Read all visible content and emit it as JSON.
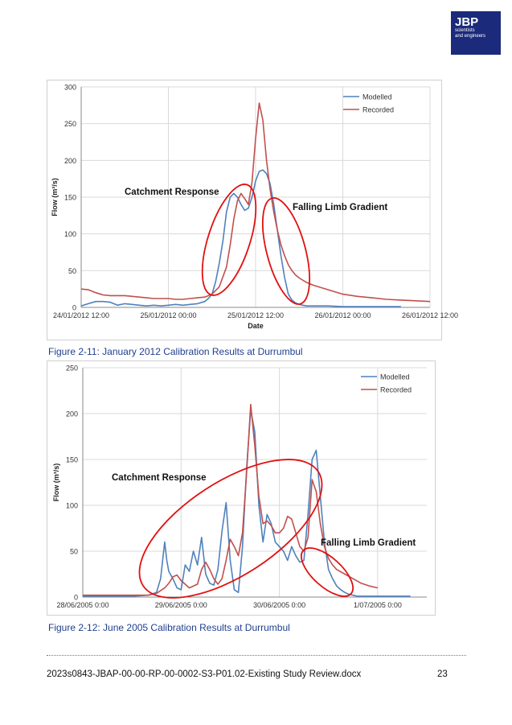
{
  "logo": {
    "brand": "JBP",
    "line1": "scientists",
    "line2": "and engineers",
    "color": "#1b2a7a"
  },
  "figure1": {
    "caption": "Figure 2-11: January 2012 Calibration Results at Durrumbul",
    "annotations": [
      "Catchment Response",
      "Falling Limb Gradient"
    ]
  },
  "figure2": {
    "caption": "Figure 2-12: June 2005 Calibration Results at Durrumbul",
    "annotations": [
      "Catchment Response",
      "Falling Limb Gradient"
    ]
  },
  "footer": {
    "doc": "2023s0843-JBAP-00-00-RP-00-0002-S3-P01.02-Existing Study Review.docx",
    "page": "23"
  },
  "chart_data": [
    {
      "type": "line",
      "title": "",
      "xlabel": "Date",
      "ylabel": "Flow (m³/s)",
      "ylim": [
        0,
        300
      ],
      "xlim": [
        0,
        48
      ],
      "x_unit": "hours from 24/01/2012 12:00",
      "x_ticks": [
        0,
        12,
        24,
        36,
        48
      ],
      "x_tick_labels": [
        "24/01/2012 12:00",
        "25/01/2012 00:00",
        "25/01/2012 12:00",
        "26/01/2012 00:00",
        "26/01/2012 12:00"
      ],
      "y_ticks": [
        0,
        50,
        100,
        150,
        200,
        250,
        300
      ],
      "grid": true,
      "legend": "top-right",
      "series": [
        {
          "name": "Modelled",
          "color": "#4f81bd",
          "x": [
            0,
            1,
            2,
            3,
            4,
            5,
            6,
            7,
            8,
            9,
            10,
            11,
            12,
            13,
            14,
            15,
            16,
            17,
            17.5,
            18,
            18.5,
            19,
            19.5,
            20,
            20.5,
            21,
            21.5,
            22,
            22.5,
            23,
            23.5,
            24,
            24.5,
            25,
            25.5,
            26,
            26.5,
            27,
            27.5,
            28,
            28.5,
            29,
            29.5,
            30,
            30.5,
            31,
            32,
            33,
            34,
            36,
            38,
            40,
            42,
            44
          ],
          "y": [
            2,
            5,
            8,
            8,
            7,
            3,
            5,
            4,
            3,
            2,
            3,
            2,
            3,
            4,
            3,
            4,
            5,
            8,
            12,
            18,
            35,
            60,
            90,
            130,
            150,
            155,
            150,
            140,
            132,
            135,
            150,
            172,
            185,
            187,
            182,
            168,
            140,
            105,
            70,
            40,
            18,
            10,
            6,
            4,
            3,
            2,
            2,
            2,
            2,
            1,
            1,
            1,
            1,
            1
          ]
        },
        {
          "name": "Recorded",
          "color": "#c0504d",
          "x": [
            0,
            1,
            2,
            3,
            4,
            5,
            6,
            7,
            8,
            9,
            10,
            11,
            12,
            13,
            14,
            15,
            16,
            17,
            18,
            19,
            20,
            20.5,
            21,
            21.5,
            22,
            22.5,
            23,
            23.5,
            24,
            24.5,
            25,
            25.5,
            26,
            26.5,
            27,
            27.5,
            28,
            28.5,
            29,
            29.5,
            30,
            31,
            32,
            34,
            36,
            38,
            40,
            42,
            44,
            46,
            48
          ],
          "y": [
            25,
            24,
            20,
            17,
            16,
            16,
            16,
            15,
            14,
            13,
            12,
            12,
            12,
            11,
            11,
            12,
            13,
            14,
            18,
            28,
            55,
            85,
            120,
            145,
            155,
            148,
            140,
            170,
            230,
            278,
            255,
            200,
            160,
            130,
            105,
            85,
            70,
            58,
            50,
            44,
            40,
            34,
            30,
            24,
            18,
            15,
            13,
            11,
            10,
            9,
            8
          ]
        }
      ]
    },
    {
      "type": "line",
      "title": "",
      "xlabel": "",
      "ylabel": "Flow (m³/s)",
      "ylim": [
        0,
        250
      ],
      "xlim": [
        0,
        84
      ],
      "x_unit": "hours from 28/06/2005 00:00",
      "x_ticks": [
        0,
        24,
        48,
        72
      ],
      "x_tick_labels": [
        "28/06/2005 0:00",
        "29/06/2005 0:00",
        "30/06/2005 0:00",
        "1/07/2005 0:00"
      ],
      "y_ticks": [
        0,
        50,
        100,
        150,
        200,
        250
      ],
      "grid": true,
      "legend": "top-right",
      "series": [
        {
          "name": "Modelled",
          "color": "#4f81bd",
          "x": [
            0,
            4,
            8,
            12,
            16,
            18,
            19,
            20,
            20.5,
            21,
            22,
            23,
            24,
            25,
            26,
            27,
            28,
            29,
            30,
            31,
            32,
            33,
            34,
            35,
            36,
            37,
            38,
            39,
            40,
            41,
            42,
            43,
            44,
            45,
            46,
            47,
            48,
            49,
            50,
            51,
            52,
            53,
            54,
            55,
            56,
            57,
            58,
            59,
            60,
            61,
            62,
            63,
            64,
            65,
            66,
            67,
            68,
            70,
            72,
            75,
            78,
            80
          ],
          "y": [
            1,
            1,
            1,
            1,
            2,
            5,
            20,
            60,
            40,
            28,
            20,
            10,
            8,
            35,
            28,
            50,
            35,
            65,
            25,
            15,
            13,
            30,
            72,
            103,
            40,
            8,
            5,
            55,
            140,
            204,
            180,
            100,
            60,
            90,
            80,
            60,
            55,
            50,
            40,
            55,
            45,
            38,
            40,
            90,
            150,
            160,
            110,
            60,
            30,
            20,
            12,
            8,
            5,
            3,
            2,
            1,
            1,
            1,
            1,
            1,
            1,
            1
          ]
        },
        {
          "name": "Recorded",
          "color": "#c0504d",
          "x": [
            0,
            4,
            8,
            12,
            16,
            18,
            20,
            21,
            22,
            23,
            24,
            26,
            28,
            29,
            30,
            31,
            32,
            33,
            34,
            35,
            36,
            37,
            38,
            39,
            40,
            41,
            42,
            43,
            44,
            45,
            46,
            47,
            48,
            49,
            50,
            51,
            52,
            53,
            54,
            55,
            56,
            57,
            58,
            59,
            60,
            61,
            62,
            64,
            66,
            68,
            70,
            72
          ],
          "y": [
            2,
            2,
            2,
            2,
            2,
            4,
            10,
            15,
            22,
            24,
            18,
            10,
            14,
            30,
            38,
            30,
            20,
            14,
            20,
            40,
            63,
            55,
            45,
            70,
            135,
            210,
            165,
            110,
            80,
            83,
            78,
            70,
            70,
            75,
            88,
            85,
            70,
            55,
            50,
            65,
            128,
            115,
            80,
            55,
            42,
            35,
            30,
            25,
            20,
            15,
            12,
            10
          ]
        }
      ]
    }
  ]
}
